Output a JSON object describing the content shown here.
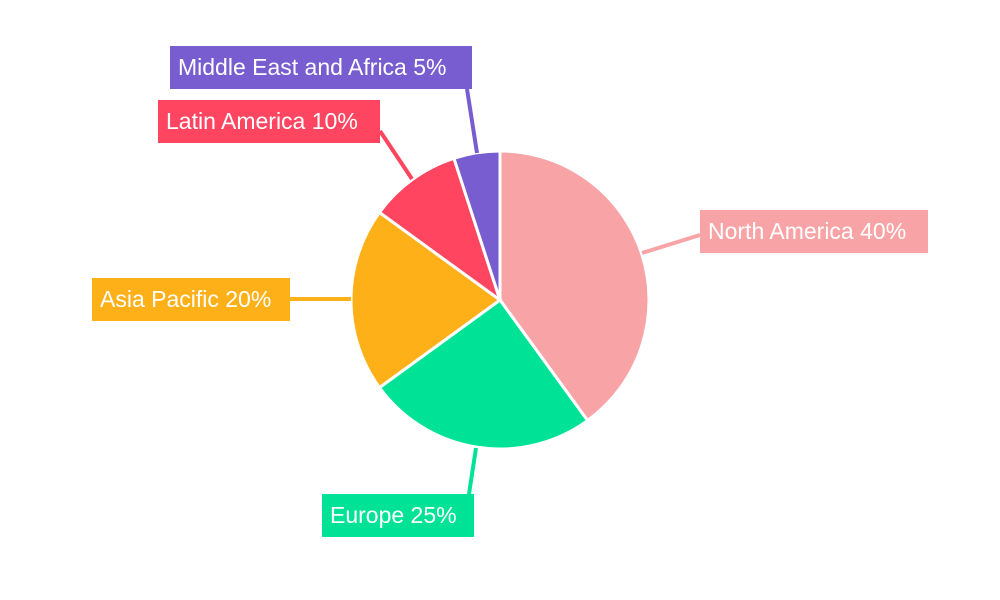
{
  "chart_data": {
    "type": "pie",
    "title": "",
    "start_angle": "top",
    "direction": "clockwise",
    "slices": [
      {
        "label": "North America 40%",
        "category": "North America",
        "value": 40,
        "color": "#F8A4A6"
      },
      {
        "label": "Europe 25%",
        "category": "Europe",
        "value": 25,
        "color": "#00E396"
      },
      {
        "label": "Asia Pacific 20%",
        "category": "Asia Pacific",
        "value": 20,
        "color": "#FEB019"
      },
      {
        "label": "Latin America 10%",
        "category": "Latin America",
        "value": 10,
        "color": "#FF4560"
      },
      {
        "label": "Middle East and Africa 5%",
        "category": "Middle East and Africa",
        "value": 5,
        "color": "#775DD0"
      }
    ]
  }
}
